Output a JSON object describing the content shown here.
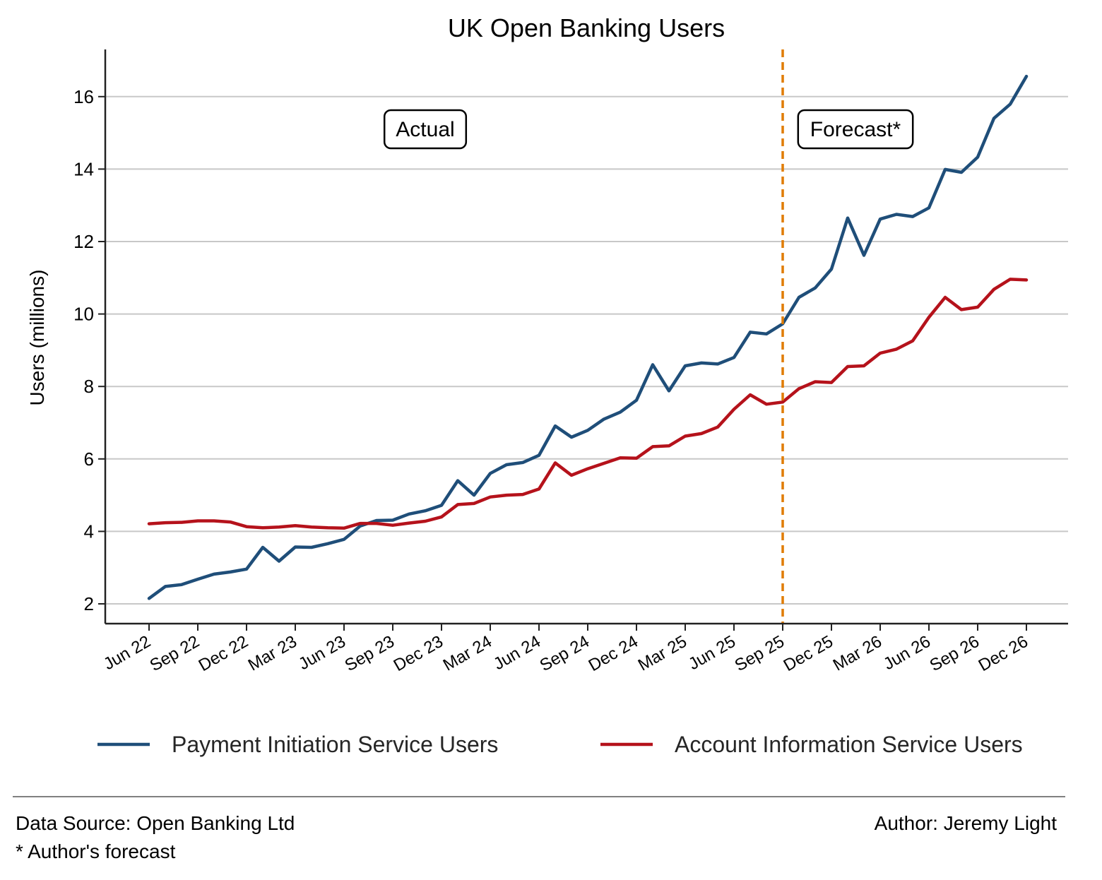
{
  "chart_data": {
    "type": "line",
    "title": "UK Open Banking Users",
    "xlabel": "",
    "ylabel": "Users (millions)",
    "ylim": [
      1.45,
      17.3
    ],
    "yticks": [
      2,
      4,
      6,
      8,
      10,
      12,
      14,
      16
    ],
    "grid": "horizontal",
    "legend_position": "bottom",
    "x_tick_labels": [
      "Jun 22",
      "Sep 22",
      "Dec 22",
      "Mar 23",
      "Jun 23",
      "Sep 23",
      "Dec 23",
      "Mar 24",
      "Jun 24",
      "Sep 24",
      "Dec 24",
      "Mar 25",
      "Jun 25",
      "Sep 25",
      "Dec 25",
      "Mar 26",
      "Jun 26",
      "Sep 26",
      "Dec 26"
    ],
    "x": [
      "Jun 22",
      "Jul 22",
      "Aug 22",
      "Sep 22",
      "Oct 22",
      "Nov 22",
      "Dec 22",
      "Jan 23",
      "Feb 23",
      "Mar 23",
      "Apr 23",
      "May 23",
      "Jun 23",
      "Jul 23",
      "Aug 23",
      "Sep 23",
      "Oct 23",
      "Nov 23",
      "Dec 23",
      "Jan 24",
      "Feb 24",
      "Mar 24",
      "Apr 24",
      "May 24",
      "Jun 24",
      "Jul 24",
      "Aug 24",
      "Sep 24",
      "Oct 24",
      "Nov 24",
      "Dec 24",
      "Jan 25",
      "Feb 25",
      "Mar 25",
      "Apr 25",
      "May 25",
      "Jun 25",
      "Jul 25",
      "Aug 25",
      "Sep 25",
      "Oct 25",
      "Nov 25",
      "Dec 25",
      "Jan 26",
      "Feb 26",
      "Mar 26",
      "Apr 26",
      "May 26",
      "Jun 26",
      "Jul 26",
      "Aug 26",
      "Sep 26",
      "Oct 26",
      "Nov 26",
      "Dec 26"
    ],
    "series": [
      {
        "name": "Payment Initiation Service Users",
        "color": "#1f4e79",
        "values": [
          2.15,
          2.48,
          2.53,
          2.68,
          2.82,
          2.88,
          2.96,
          3.56,
          3.18,
          3.57,
          3.56,
          3.66,
          3.78,
          4.15,
          4.3,
          4.31,
          4.48,
          4.57,
          4.72,
          5.4,
          5.0,
          5.6,
          5.84,
          5.9,
          6.1,
          6.91,
          6.6,
          6.79,
          7.1,
          7.29,
          7.62,
          8.6,
          7.88,
          8.57,
          8.65,
          8.62,
          8.8,
          9.5,
          9.45,
          9.73,
          10.46,
          10.72,
          11.24,
          12.65,
          11.62,
          12.62,
          12.75,
          12.69,
          12.93,
          13.99,
          13.91,
          14.33,
          15.4,
          15.79,
          16.56
        ]
      },
      {
        "name": "Account Information Service Users",
        "color": "#b5121b",
        "values": [
          4.21,
          4.24,
          4.25,
          4.29,
          4.29,
          4.26,
          4.13,
          4.1,
          4.12,
          4.16,
          4.12,
          4.1,
          4.09,
          4.22,
          4.22,
          4.17,
          4.23,
          4.28,
          4.4,
          4.74,
          4.77,
          4.95,
          5.0,
          5.02,
          5.17,
          5.89,
          5.55,
          5.73,
          5.88,
          6.03,
          6.02,
          6.34,
          6.36,
          6.63,
          6.7,
          6.88,
          7.37,
          7.77,
          7.51,
          7.57,
          7.94,
          8.13,
          8.11,
          8.55,
          8.57,
          8.92,
          9.03,
          9.26,
          9.91,
          10.46,
          10.12,
          10.19,
          10.68,
          10.96,
          10.94
        ]
      }
    ],
    "vline": {
      "x": "Sep 25",
      "color": "#e07b00",
      "style": "dashed"
    },
    "annotations": [
      {
        "text": "Actual",
        "x": "Nov 23",
        "y": 15.1
      },
      {
        "text": "Forecast*",
        "x": "Jan 26",
        "y": 15.1
      }
    ]
  },
  "footer": {
    "source": "Data Source: Open Banking Ltd",
    "note": "* Author's forecast",
    "author": "Author: Jeremy Light"
  }
}
